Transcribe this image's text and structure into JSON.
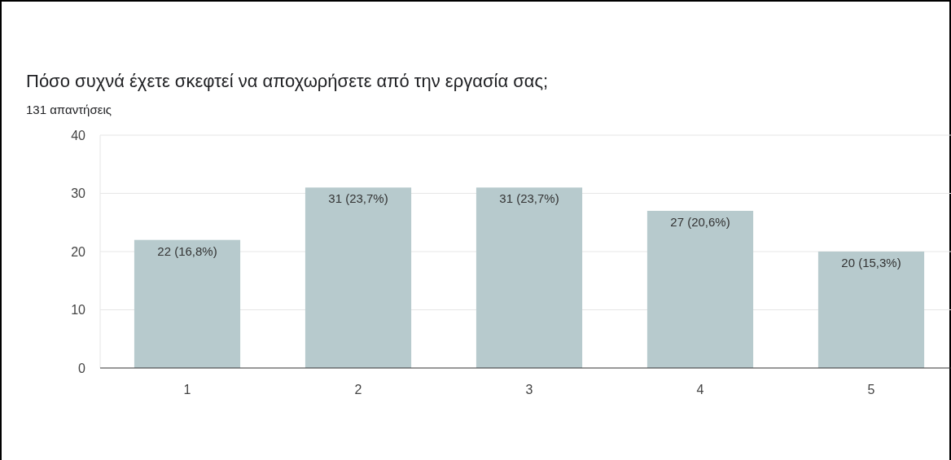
{
  "chart_data": {
    "type": "bar",
    "title": "Πόσο συχνά έχετε σκεφτεί να αποχωρήσετε από την εργασία σας;",
    "subtitle": "131 απαντήσεις",
    "categories": [
      "1",
      "2",
      "3",
      "4",
      "5"
    ],
    "values": [
      22,
      31,
      31,
      27,
      20
    ],
    "value_labels": [
      "22 (16,8%)",
      "31 (23,7%)",
      "31 (23,7%)",
      "27 (20,6%)",
      "20 (15,3%)"
    ],
    "color": "#b7cacd",
    "ylim": [
      0,
      40
    ],
    "yticks": [
      0,
      10,
      20,
      30,
      40
    ],
    "grid": "y"
  }
}
